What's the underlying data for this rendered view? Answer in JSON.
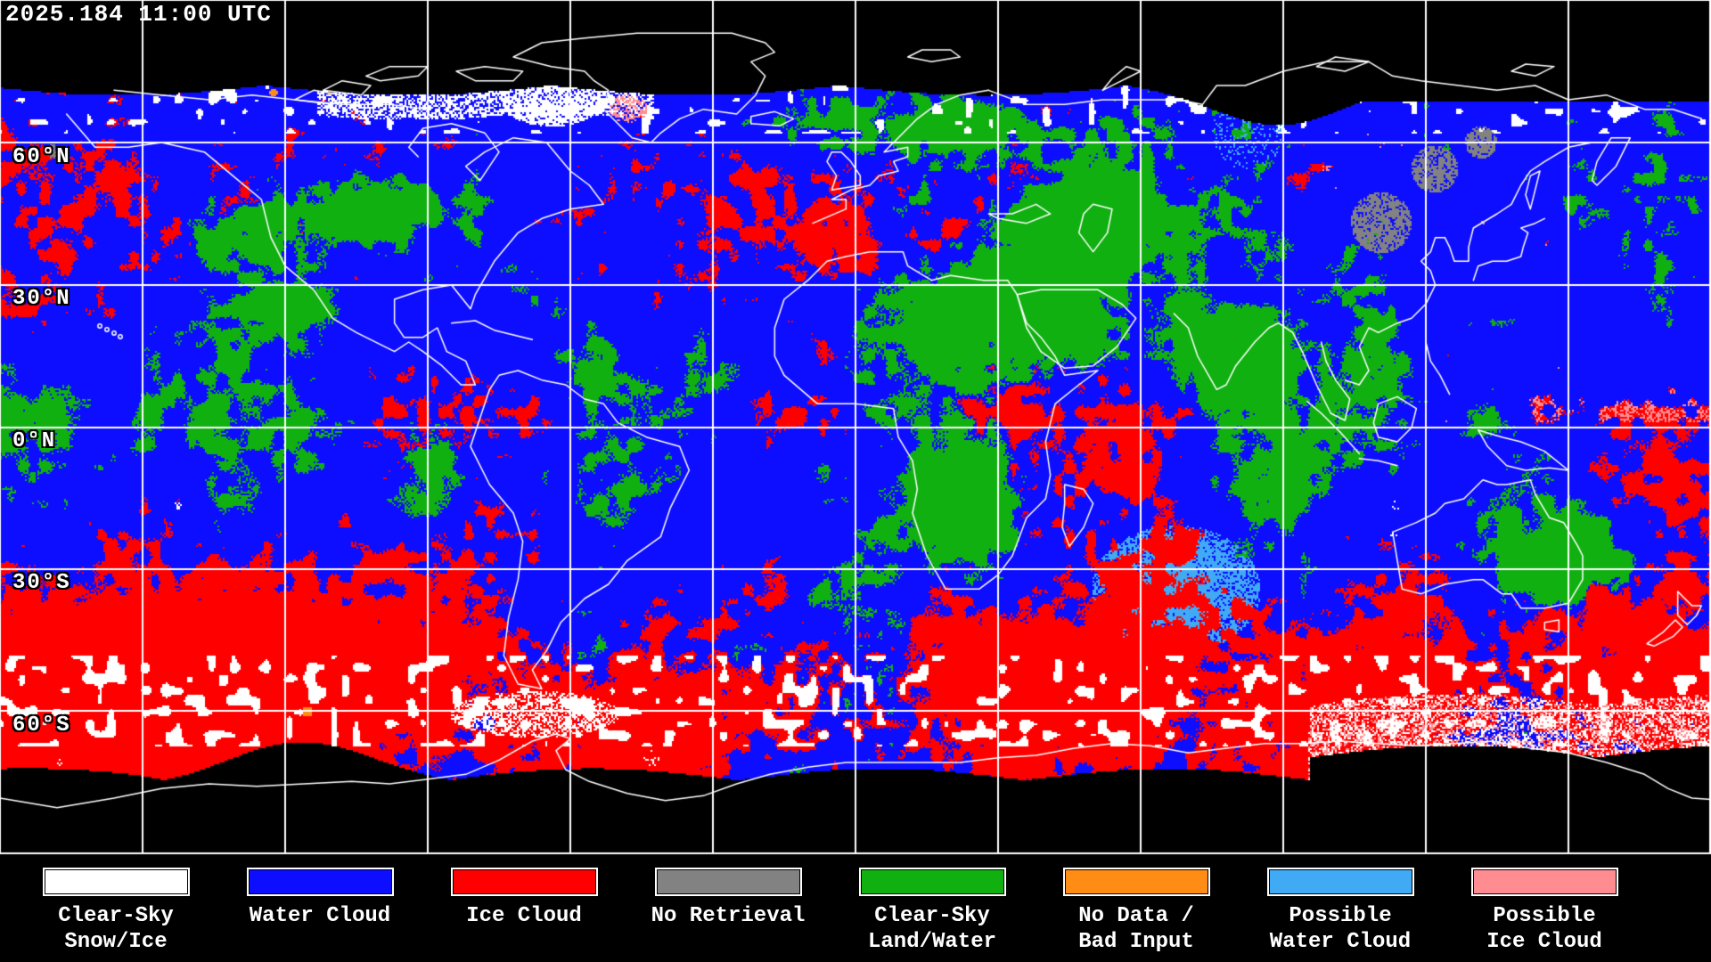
{
  "header": {
    "timestamp": "2025.184 11:00 UTC"
  },
  "map": {
    "latitude_labels": [
      "60°N",
      "30°N",
      "0°N",
      "30°S",
      "60°S"
    ],
    "grid": {
      "lat_interval_deg": 30,
      "lon_interval_deg": 30
    },
    "colors": {
      "background": "#000000",
      "gridline": "#ffffff",
      "coastline": "#ffffff"
    }
  },
  "legend": {
    "items": [
      {
        "id": "clear-sky-snow-ice",
        "line1": "Clear-Sky",
        "line2": "Snow/Ice",
        "color": "#ffffff"
      },
      {
        "id": "water-cloud",
        "line1": "Water Cloud",
        "line2": "",
        "color": "#0d0dff"
      },
      {
        "id": "ice-cloud",
        "line1": "Ice Cloud",
        "line2": "",
        "color": "#ff0000"
      },
      {
        "id": "no-retrieval",
        "line1": "No Retrieval",
        "line2": "",
        "color": "#828282"
      },
      {
        "id": "clear-sky-land-water",
        "line1": "Clear-Sky",
        "line2": "Land/Water",
        "color": "#10b010"
      },
      {
        "id": "no-data-bad-input",
        "line1": "No Data /",
        "line2": "Bad Input",
        "color": "#ff8c14"
      },
      {
        "id": "possible-water-cloud",
        "line1": "Possible",
        "line2": "Water Cloud",
        "color": "#41aaf5"
      },
      {
        "id": "possible-ice-cloud",
        "line1": "Possible",
        "line2": "Ice Cloud",
        "color": "#ff8c91"
      }
    ]
  }
}
